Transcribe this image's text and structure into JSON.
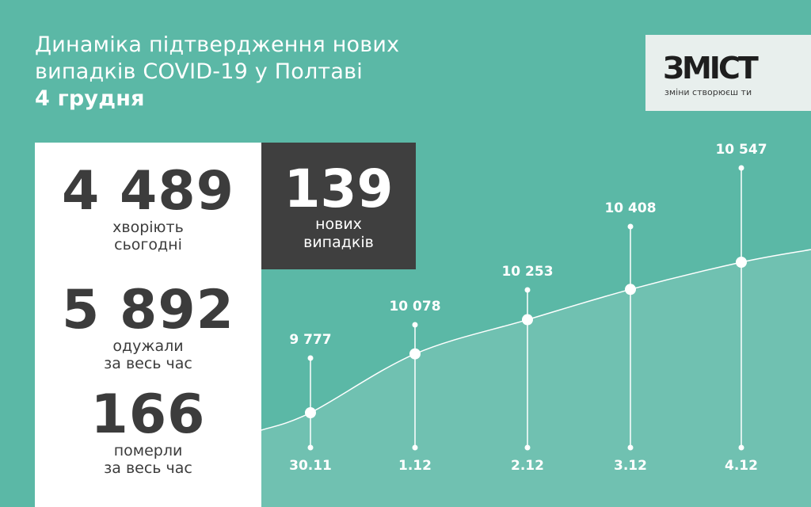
{
  "header": {
    "title_line1": "Динаміка підтвердження нових",
    "title_line2": "випадків COVID-19 у Полтаві",
    "date": "4 грудня"
  },
  "logo": {
    "name": "ЗМІСТ",
    "tagline": "зміни створюєш ти"
  },
  "stats": {
    "sick": {
      "value": "4 489",
      "label1": "хворіють",
      "label2": "сьогодні"
    },
    "recovered": {
      "value": "5 892",
      "label1": "одужали",
      "label2": "за весь час"
    },
    "died": {
      "value": "166",
      "label1": "померли",
      "label2": "за весь час"
    },
    "new": {
      "value": "139",
      "label1": "нових",
      "label2": "випадків"
    }
  },
  "colors": {
    "background": "#5bb8a6",
    "panel": "#ffffff",
    "dark": "#3f3f3f",
    "text": "#3c3c3c"
  },
  "chart_data": {
    "type": "line",
    "title": "",
    "xlabel": "",
    "ylabel": "",
    "categories": [
      "30.11",
      "1.12",
      "2.12",
      "3.12",
      "4.12"
    ],
    "values": [
      9777,
      10078,
      10253,
      10408,
      10547
    ],
    "value_labels": [
      "9 777",
      "10 078",
      "10 253",
      "10 408",
      "10 547"
    ],
    "grid": false,
    "legend": "none"
  }
}
